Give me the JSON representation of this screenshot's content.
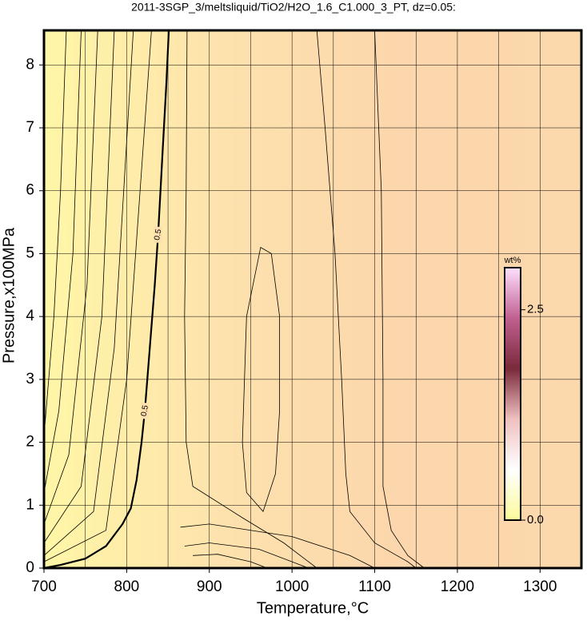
{
  "chart_data": {
    "type": "contour",
    "title": "2011-3SGP_3/meltsliquid/TiO2/H2O_1.6_C1.000_3_PT, dz=0.05:",
    "xlabel": "Temperature,°C",
    "ylabel": "Pressure,x100MPa",
    "xlim": [
      700,
      1350
    ],
    "ylim": [
      0,
      8.55
    ],
    "xticks": [
      700,
      800,
      900,
      1000,
      1100,
      1200,
      1300
    ],
    "xminorticks": [
      750,
      850,
      950,
      1050,
      1150,
      1250
    ],
    "yticks": [
      0,
      1,
      2,
      3,
      4,
      5,
      6,
      7,
      8
    ],
    "grid": true,
    "background_colors": [
      "#fff6a6",
      "#fde2ad",
      "#fcd6ac",
      "#fcd8ad"
    ],
    "contours": [
      {
        "level": 0.5,
        "x": [
          700,
          720,
          750,
          775,
          795,
          805,
          812,
          818,
          822,
          828,
          834,
          838,
          843,
          848,
          851
        ],
        "y": [
          0,
          0.05,
          0.15,
          0.35,
          0.7,
          0.95,
          1.4,
          2.0,
          2.5,
          3.5,
          4.5,
          5.3,
          6.5,
          7.7,
          8.55
        ]
      },
      {
        "x": [
          700,
          712,
          720,
          727
        ],
        "y": [
          2.1,
          4,
          6,
          8.55
        ]
      },
      {
        "x": [
          700,
          718,
          735,
          745
        ],
        "y": [
          1.2,
          2.5,
          5,
          8.55
        ]
      },
      {
        "x": [
          700,
          730,
          752,
          765
        ],
        "y": [
          0.7,
          1.8,
          4.5,
          8.55
        ]
      },
      {
        "x": [
          700,
          745,
          770,
          785
        ],
        "y": [
          0.4,
          1.3,
          4,
          8.55
        ]
      },
      {
        "x": [
          700,
          760,
          785,
          808
        ],
        "y": [
          0.2,
          0.9,
          3.5,
          8.55
        ]
      },
      {
        "x": [
          700,
          775,
          800,
          830
        ],
        "y": [
          0.1,
          0.6,
          3,
          8.55
        ]
      },
      {
        "x": [
          873,
          872,
          870,
          872,
          880,
          940,
          990,
          1020,
          1030
        ],
        "y": [
          8.55,
          6,
          4,
          2,
          1.3,
          0.8,
          0.4,
          0.1,
          0
        ]
      },
      {
        "x": [
          940,
          945,
          962,
          975,
          985,
          985,
          980,
          965,
          945,
          940
        ],
        "y": [
          2,
          4,
          5.1,
          5.0,
          4,
          2.5,
          1.5,
          0.9,
          1.2,
          2
        ]
      },
      {
        "x": [
          1030,
          1040,
          1052,
          1060,
          1065,
          1070,
          1100,
          1140,
          1150
        ],
        "y": [
          8.55,
          7,
          5,
          3,
          1.5,
          0.9,
          0.4,
          0.1,
          0
        ]
      },
      {
        "x": [
          1100,
          1108,
          1110,
          1110,
          1120,
          1140,
          1160
        ],
        "y": [
          8.55,
          6,
          3,
          1.3,
          0.6,
          0.2,
          0
        ]
      },
      {
        "x": [
          865,
          900,
          1000,
          1070,
          1100
        ],
        "y": [
          0.65,
          0.7,
          0.5,
          0.2,
          0
        ]
      },
      {
        "x": [
          870,
          900,
          960,
          1000,
          1020
        ],
        "y": [
          0.35,
          0.4,
          0.3,
          0.1,
          0
        ]
      },
      {
        "x": [
          880,
          910,
          950,
          970
        ],
        "y": [
          0.2,
          0.22,
          0.1,
          0
        ]
      }
    ],
    "colorbar": {
      "label": "wt%",
      "clim": [
        0,
        3.0
      ],
      "ticks": [
        {
          "value": 0,
          "label": "0.0"
        },
        2.5
      ],
      "colors": [
        "#fbfb9a",
        "#ffffff",
        "#f0c0c0",
        "#7a2a3a",
        "#c06090",
        "#ffe0ff"
      ]
    }
  }
}
